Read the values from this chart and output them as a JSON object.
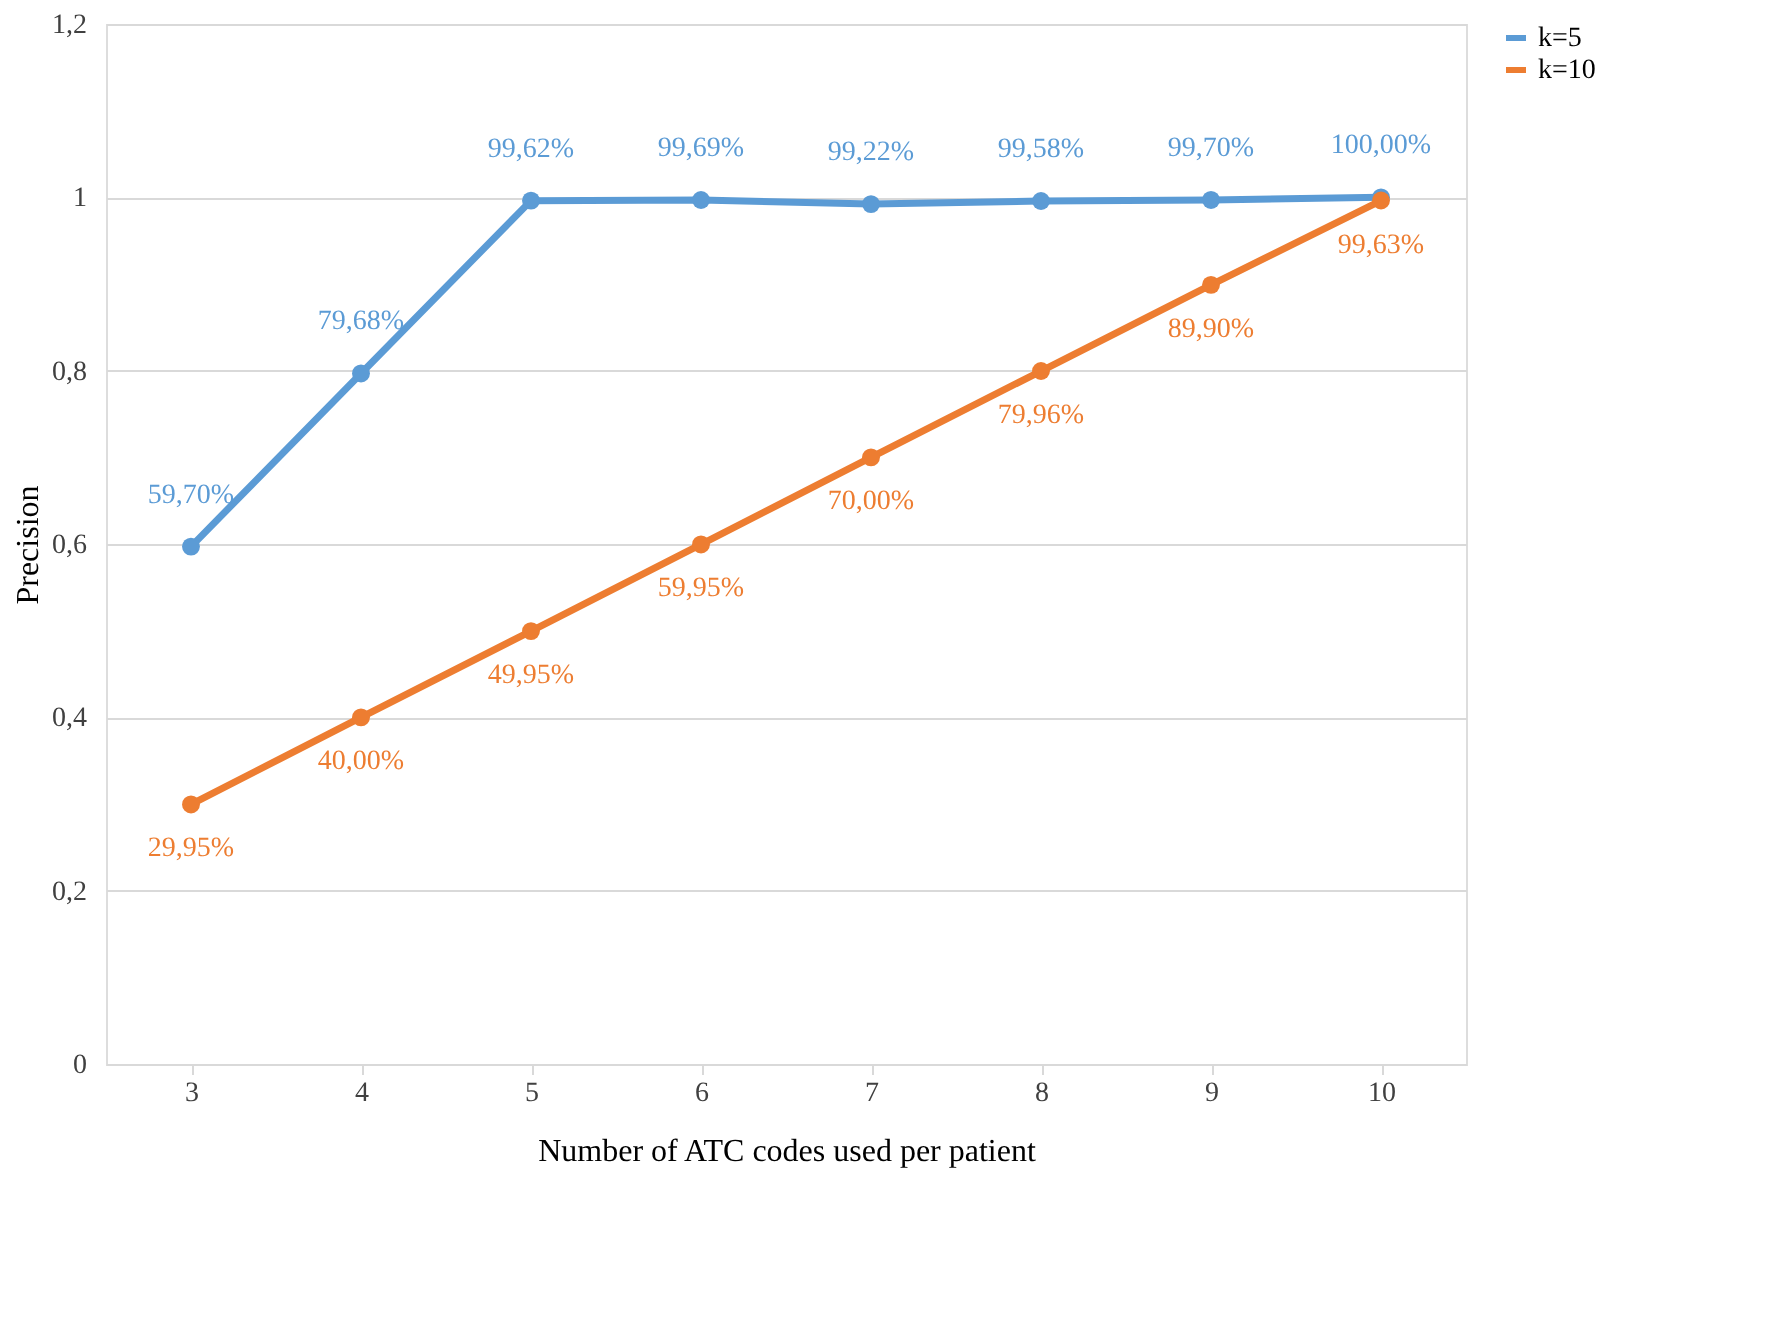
{
  "chart_data": {
    "type": "line",
    "xlabel": "Number of ATC codes used per patient",
    "ylabel": "Precision",
    "categories": [
      "3",
      "4",
      "5",
      "6",
      "7",
      "8",
      "9",
      "10"
    ],
    "series": [
      {
        "name": "k=5",
        "color": "#5b9bd5",
        "values": [
          0.597,
          0.7968,
          0.9962,
          0.9969,
          0.9922,
          0.9958,
          0.997,
          1.0
        ],
        "value_labels": [
          "59,70%",
          "79,68%",
          "99,62%",
          "99,69%",
          "99,22%",
          "99,58%",
          "99,70%",
          "100,00%"
        ]
      },
      {
        "name": "k=10",
        "color": "#ed7d31",
        "values": [
          0.2995,
          0.4,
          0.4995,
          0.5995,
          0.7,
          0.7996,
          0.899,
          0.9963
        ],
        "value_labels": [
          "29,95%",
          "40,00%",
          "49,95%",
          "59,95%",
          "70,00%",
          "79,96%",
          "89,90%",
          "99,63%"
        ]
      }
    ],
    "ylim": [
      0,
      1.2
    ],
    "yticks": [
      0,
      {
        "value": 0.2,
        "label": "0,2"
      },
      {
        "value": 0.4,
        "label": "0,4"
      },
      {
        "value": 0.6,
        "label": "0,6"
      },
      {
        "value": 0.8,
        "label": "0,8"
      },
      1,
      {
        "value": 1.2,
        "label": "1,2"
      }
    ],
    "grid": "y",
    "legend": "right",
    "marker": "circle",
    "line_style": "solid"
  }
}
